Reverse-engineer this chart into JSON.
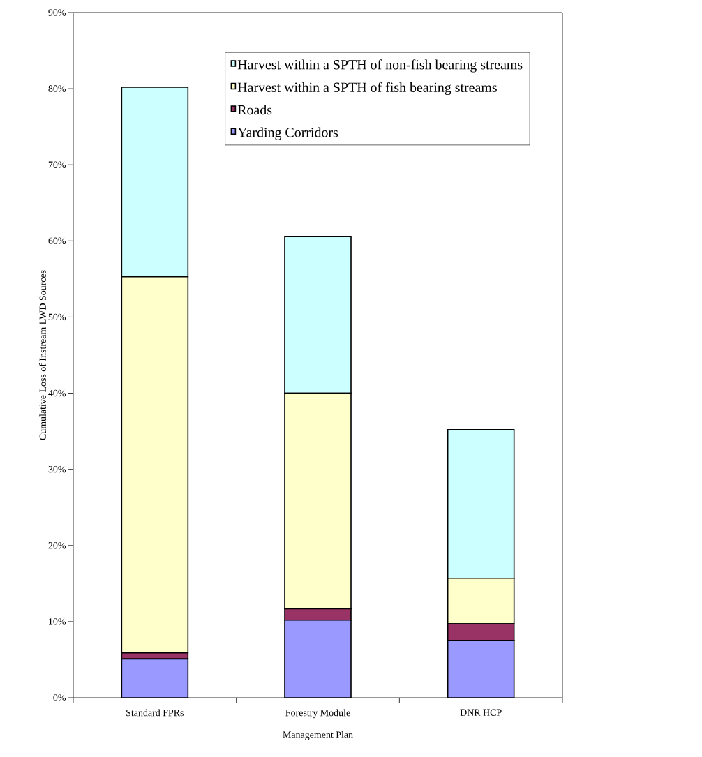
{
  "chart_data": {
    "type": "bar",
    "stacked": true,
    "xlabel": "Management Plan",
    "ylabel": "Cumulative Loss of Instream LWD Sources",
    "categories": [
      "Standard FPRs",
      "Forestry Module",
      "DNR HCP"
    ],
    "series": [
      {
        "name": "Yarding Corridors",
        "color": "#9999ff",
        "values": [
          5.1,
          10.2,
          7.5
        ]
      },
      {
        "name": "Roads",
        "color": "#993366",
        "values": [
          0.8,
          1.5,
          2.2
        ]
      },
      {
        "name": "Harvest within a SPTH of fish bearing streams",
        "color": "#ffffcc",
        "values": [
          49.4,
          28.3,
          6.0
        ]
      },
      {
        "name": "Harvest within a SPTH of non-fish bearing streams",
        "color": "#ccffff",
        "values": [
          24.9,
          20.6,
          19.5
        ]
      }
    ],
    "ylim": [
      0,
      90
    ],
    "yticks": [
      {
        "value": 0,
        "label": "0%"
      },
      {
        "value": 10,
        "label": "10%"
      },
      {
        "value": 20,
        "label": "20%"
      },
      {
        "value": 30,
        "label": "30%"
      },
      {
        "value": 40,
        "label": "40%"
      },
      {
        "value": 50,
        "label": "50%"
      },
      {
        "value": 60,
        "label": "60%"
      },
      {
        "value": 70,
        "label": "70%"
      },
      {
        "value": 80,
        "label": "80%"
      },
      {
        "value": 90,
        "label": "90%"
      }
    ],
    "grid": false,
    "legend": "top right"
  }
}
